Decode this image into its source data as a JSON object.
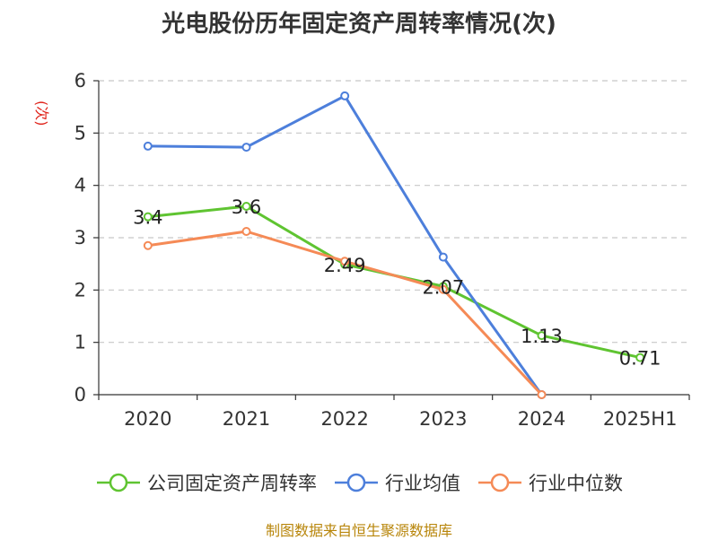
{
  "chart_data": {
    "type": "line",
    "title": "光电股份历年固定资产周转率情况(次)",
    "y_unit": "(次)",
    "categories": [
      "2020",
      "2021",
      "2022",
      "2023",
      "2024",
      "2025H1"
    ],
    "ylim": [
      0,
      6
    ],
    "yticks": [
      "0",
      "1",
      "2",
      "3",
      "4",
      "5",
      "6"
    ],
    "grid": true,
    "legend_position": "bottom",
    "series": [
      {
        "name": "公司固定资产周转率",
        "color": "#5fc431",
        "values": [
          3.4,
          3.6,
          2.49,
          2.07,
          1.13,
          0.71
        ],
        "labels": [
          "3.4",
          "3.6",
          "2.49",
          "2.07",
          "1.13",
          "0.71"
        ]
      },
      {
        "name": "行业均值",
        "color": "#4d7fdb",
        "values": [
          4.75,
          4.73,
          5.71,
          2.63,
          0.0,
          null
        ]
      },
      {
        "name": "行业中位数",
        "color": "#f58a56",
        "values": [
          2.85,
          3.12,
          2.55,
          2.01,
          0.0,
          null
        ]
      }
    ],
    "source": "制图数据来自恒生聚源数据库"
  }
}
